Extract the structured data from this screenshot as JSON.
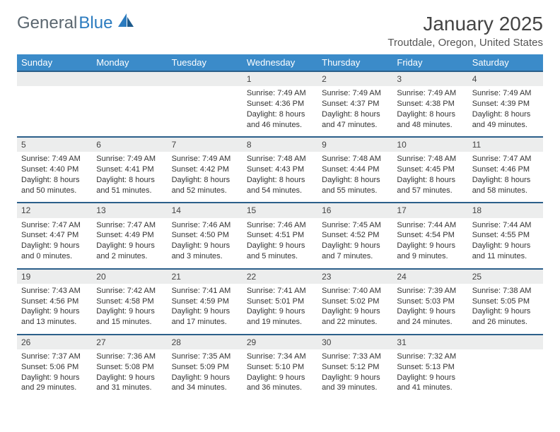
{
  "brand": {
    "part1": "General",
    "part2": "Blue"
  },
  "title": "January 2025",
  "location": "Troutdale, Oregon, United States",
  "colors": {
    "header_bg": "#3b8bc9",
    "row_divider": "#2b5f8a",
    "daynum_bg": "#eceded",
    "brand_gray": "#5b6770",
    "brand_blue": "#2b7bbf"
  },
  "weekdays": [
    "Sunday",
    "Monday",
    "Tuesday",
    "Wednesday",
    "Thursday",
    "Friday",
    "Saturday"
  ],
  "weeks": [
    [
      null,
      null,
      null,
      {
        "n": "1",
        "sr": "7:49 AM",
        "ss": "4:36 PM",
        "dl": "8 hours and 46 minutes."
      },
      {
        "n": "2",
        "sr": "7:49 AM",
        "ss": "4:37 PM",
        "dl": "8 hours and 47 minutes."
      },
      {
        "n": "3",
        "sr": "7:49 AM",
        "ss": "4:38 PM",
        "dl": "8 hours and 48 minutes."
      },
      {
        "n": "4",
        "sr": "7:49 AM",
        "ss": "4:39 PM",
        "dl": "8 hours and 49 minutes."
      }
    ],
    [
      {
        "n": "5",
        "sr": "7:49 AM",
        "ss": "4:40 PM",
        "dl": "8 hours and 50 minutes."
      },
      {
        "n": "6",
        "sr": "7:49 AM",
        "ss": "4:41 PM",
        "dl": "8 hours and 51 minutes."
      },
      {
        "n": "7",
        "sr": "7:49 AM",
        "ss": "4:42 PM",
        "dl": "8 hours and 52 minutes."
      },
      {
        "n": "8",
        "sr": "7:48 AM",
        "ss": "4:43 PM",
        "dl": "8 hours and 54 minutes."
      },
      {
        "n": "9",
        "sr": "7:48 AM",
        "ss": "4:44 PM",
        "dl": "8 hours and 55 minutes."
      },
      {
        "n": "10",
        "sr": "7:48 AM",
        "ss": "4:45 PM",
        "dl": "8 hours and 57 minutes."
      },
      {
        "n": "11",
        "sr": "7:47 AM",
        "ss": "4:46 PM",
        "dl": "8 hours and 58 minutes."
      }
    ],
    [
      {
        "n": "12",
        "sr": "7:47 AM",
        "ss": "4:47 PM",
        "dl": "9 hours and 0 minutes."
      },
      {
        "n": "13",
        "sr": "7:47 AM",
        "ss": "4:49 PM",
        "dl": "9 hours and 2 minutes."
      },
      {
        "n": "14",
        "sr": "7:46 AM",
        "ss": "4:50 PM",
        "dl": "9 hours and 3 minutes."
      },
      {
        "n": "15",
        "sr": "7:46 AM",
        "ss": "4:51 PM",
        "dl": "9 hours and 5 minutes."
      },
      {
        "n": "16",
        "sr": "7:45 AM",
        "ss": "4:52 PM",
        "dl": "9 hours and 7 minutes."
      },
      {
        "n": "17",
        "sr": "7:44 AM",
        "ss": "4:54 PM",
        "dl": "9 hours and 9 minutes."
      },
      {
        "n": "18",
        "sr": "7:44 AM",
        "ss": "4:55 PM",
        "dl": "9 hours and 11 minutes."
      }
    ],
    [
      {
        "n": "19",
        "sr": "7:43 AM",
        "ss": "4:56 PM",
        "dl": "9 hours and 13 minutes."
      },
      {
        "n": "20",
        "sr": "7:42 AM",
        "ss": "4:58 PM",
        "dl": "9 hours and 15 minutes."
      },
      {
        "n": "21",
        "sr": "7:41 AM",
        "ss": "4:59 PM",
        "dl": "9 hours and 17 minutes."
      },
      {
        "n": "22",
        "sr": "7:41 AM",
        "ss": "5:01 PM",
        "dl": "9 hours and 19 minutes."
      },
      {
        "n": "23",
        "sr": "7:40 AM",
        "ss": "5:02 PM",
        "dl": "9 hours and 22 minutes."
      },
      {
        "n": "24",
        "sr": "7:39 AM",
        "ss": "5:03 PM",
        "dl": "9 hours and 24 minutes."
      },
      {
        "n": "25",
        "sr": "7:38 AM",
        "ss": "5:05 PM",
        "dl": "9 hours and 26 minutes."
      }
    ],
    [
      {
        "n": "26",
        "sr": "7:37 AM",
        "ss": "5:06 PM",
        "dl": "9 hours and 29 minutes."
      },
      {
        "n": "27",
        "sr": "7:36 AM",
        "ss": "5:08 PM",
        "dl": "9 hours and 31 minutes."
      },
      {
        "n": "28",
        "sr": "7:35 AM",
        "ss": "5:09 PM",
        "dl": "9 hours and 34 minutes."
      },
      {
        "n": "29",
        "sr": "7:34 AM",
        "ss": "5:10 PM",
        "dl": "9 hours and 36 minutes."
      },
      {
        "n": "30",
        "sr": "7:33 AM",
        "ss": "5:12 PM",
        "dl": "9 hours and 39 minutes."
      },
      {
        "n": "31",
        "sr": "7:32 AM",
        "ss": "5:13 PM",
        "dl": "9 hours and 41 minutes."
      },
      null
    ]
  ],
  "labels": {
    "sunrise": "Sunrise:",
    "sunset": "Sunset:",
    "daylight": "Daylight:"
  }
}
